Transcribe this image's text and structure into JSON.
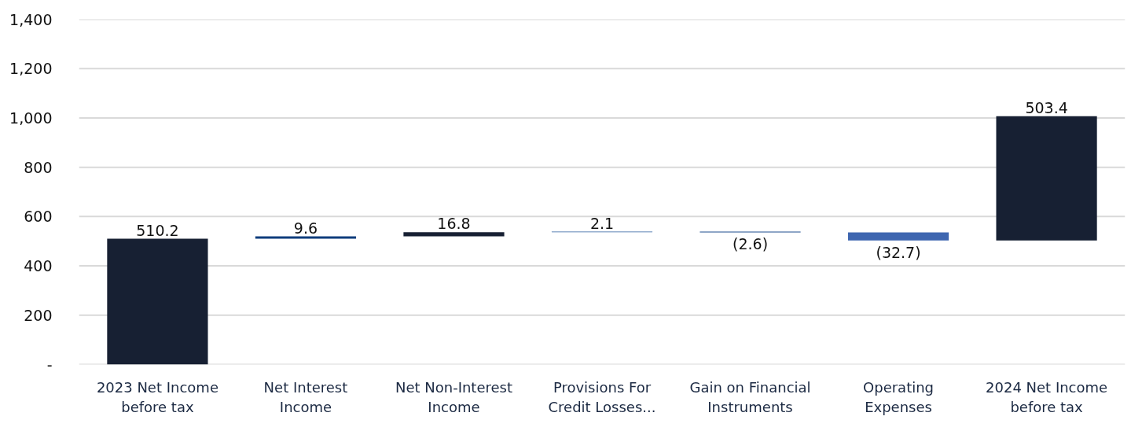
{
  "chart_data": {
    "type": "bar",
    "categories": [
      "2023 Net Income before tax",
      "Net Interest Income",
      "Net Non-Interest Income",
      "Provisions For Credit Losses...",
      "Gain on Financial Instruments",
      "Operating Expenses",
      "2024 Net Income before tax"
    ],
    "values": [
      510.2,
      9.6,
      16.8,
      2.1,
      -2.6,
      -32.7,
      503.4
    ],
    "base": [
      0,
      510.2,
      519.8,
      536.6,
      538.7,
      536.1,
      503.4
    ],
    "colors": [
      "#172033",
      "#0e3d7c",
      "#172033",
      "#2b5c9e",
      "#1f4f8f",
      "#3e66b0",
      "#172033"
    ],
    "value_labels": [
      "510.2",
      "9.6",
      "16.8",
      "2.1",
      "(2.6)",
      "(32.7)",
      "503.4"
    ],
    "ylim": [
      0,
      1400
    ],
    "yticks": [
      {
        "value": 0,
        "label": "-"
      },
      200,
      400,
      600,
      800,
      {
        "value": 1000,
        "label": "1,000"
      },
      {
        "value": 1200,
        "label": "1,200"
      },
      {
        "value": 1400,
        "label": "1,400"
      }
    ],
    "grid": "y"
  }
}
